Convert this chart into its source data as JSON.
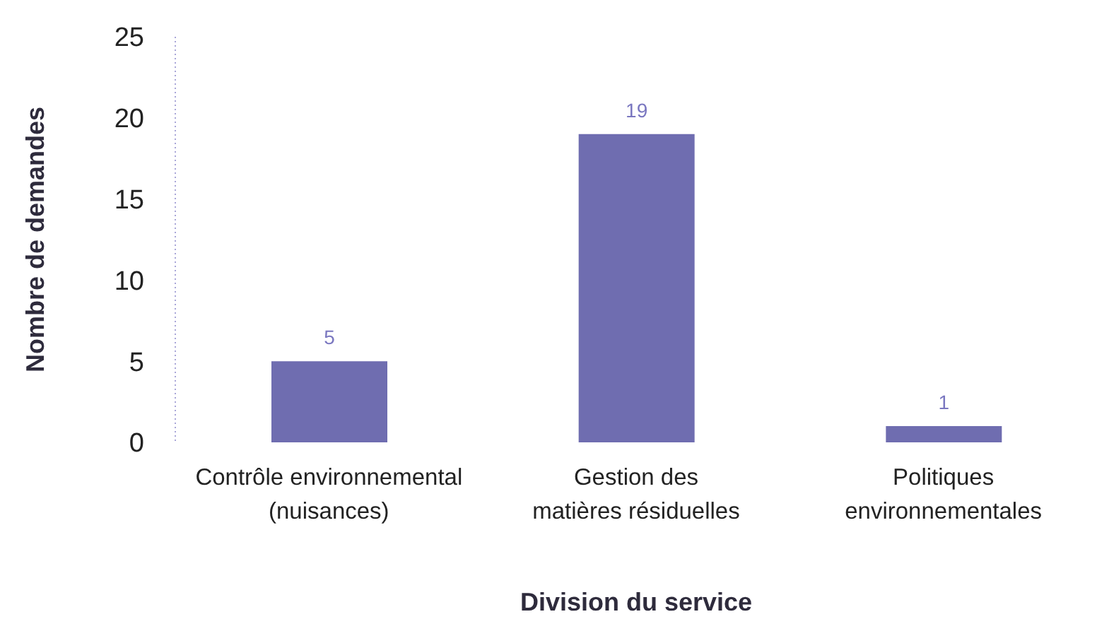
{
  "chart_data": {
    "type": "bar",
    "xlabel": "Division du service",
    "ylabel": "Nombre de demandes",
    "categories": [
      "Contrôle environnemental\n(nuisances)",
      "Gestion des\nmatières résiduelles",
      "Politiques\nenvironnementales"
    ],
    "values": [
      5,
      19,
      1
    ],
    "color": "#6f6db0",
    "ylim": [
      0,
      25
    ],
    "yticks": [
      0,
      5,
      10,
      15,
      20,
      25
    ],
    "data_labels": true
  }
}
